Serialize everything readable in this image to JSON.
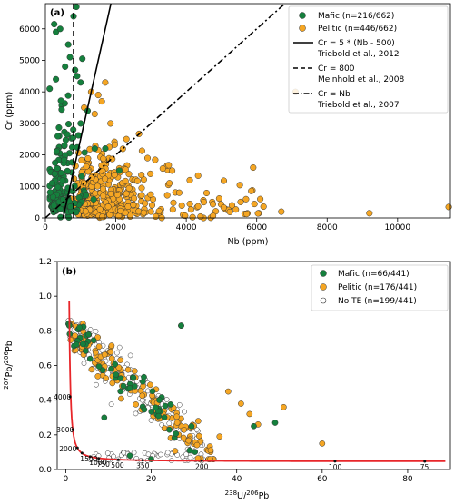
{
  "colors": {
    "mafic": "#15803d",
    "pelitic": "#f5a623",
    "none": "#ffffff",
    "concordia": "#e8262a"
  },
  "chart_data": [
    {
      "type": "scatter",
      "panel_label": "(a)",
      "xlabel": "Nb (ppm)",
      "ylabel": "Cr (ppm)",
      "xlim": [
        0,
        11500
      ],
      "ylim": [
        0,
        6800
      ],
      "xticks": [
        0,
        2000,
        4000,
        6000,
        8000,
        10000
      ],
      "xtick_labels": [
        "0",
        "2000",
        "4000",
        "6000",
        "8000",
        "10000"
      ],
      "yticks": [
        0,
        1000,
        2000,
        3000,
        4000,
        5000,
        6000
      ],
      "ytick_labels": [
        "0",
        "1000",
        "2000",
        "3000",
        "4000",
        "5000",
        "6000"
      ],
      "grid": false,
      "legend_position": "top-right",
      "series": [
        {
          "name": "Mafic (n=216/662)",
          "color": "#15803d"
        },
        {
          "name": "Pelitic (n=446/662)",
          "color": "#f5a623"
        }
      ],
      "lines": [
        {
          "label": "Cr = 5 * (Nb - 500)",
          "ref": "Triebold et al., 2012",
          "style": "solid"
        },
        {
          "label": "Cr = 800",
          "ref": "Meinhold et al., 2008",
          "style": "dashed"
        },
        {
          "label": "Cr = Nb",
          "ref": "Triebold et al., 2007",
          "style": "dashdot"
        }
      ]
    },
    {
      "type": "scatter",
      "panel_label": "(b)",
      "xlabel_main": "238",
      "xlabel_rest": "U/",
      "xlabel_sup2": "206",
      "xlabel_end": "Pb",
      "ylabel_sup1": "207",
      "ylabel_mid": "Pb/",
      "ylabel_sup2": "206",
      "ylabel_end": "Pb",
      "xlim": [
        -2,
        90
      ],
      "ylim": [
        0,
        1.2
      ],
      "xticks": [
        0,
        20,
        40,
        60,
        80
      ],
      "xtick_labels": [
        "0",
        "20",
        "40",
        "60",
        "80"
      ],
      "yticks": [
        0,
        0.2,
        0.4,
        0.6,
        0.8,
        1.0,
        1.2
      ],
      "ytick_labels": [
        "0.0",
        "0.2",
        "0.4",
        "0.6",
        "0.8",
        "1.0",
        "1.2"
      ],
      "grid": false,
      "legend_position": "top-right",
      "series": [
        {
          "name": "Mafic (n=66/441)",
          "color": "#15803d"
        },
        {
          "name": "Pelitic (n=176/441)",
          "color": "#f5a623"
        },
        {
          "name": "No TE (n=199/441)",
          "color": "#ffffff"
        }
      ],
      "concordia_ages": [
        {
          "label": "4000",
          "x": 1.0,
          "y": 0.42
        },
        {
          "label": "3000",
          "x": 1.65,
          "y": 0.23
        },
        {
          "label": "2000",
          "x": 2.73,
          "y": 0.125
        },
        {
          "label": "1500",
          "x": 3.8,
          "y": 0.095
        },
        {
          "label": "1000",
          "x": 5.7,
          "y": 0.074
        },
        {
          "label": "750",
          "x": 7.7,
          "y": 0.064
        },
        {
          "label": "500",
          "x": 12.3,
          "y": 0.057
        },
        {
          "label": "350",
          "x": 18.0,
          "y": 0.054
        },
        {
          "label": "200",
          "x": 31.8,
          "y": 0.051
        },
        {
          "label": "100",
          "x": 63.0,
          "y": 0.048
        },
        {
          "label": "75",
          "x": 84.0,
          "y": 0.047
        }
      ]
    }
  ]
}
